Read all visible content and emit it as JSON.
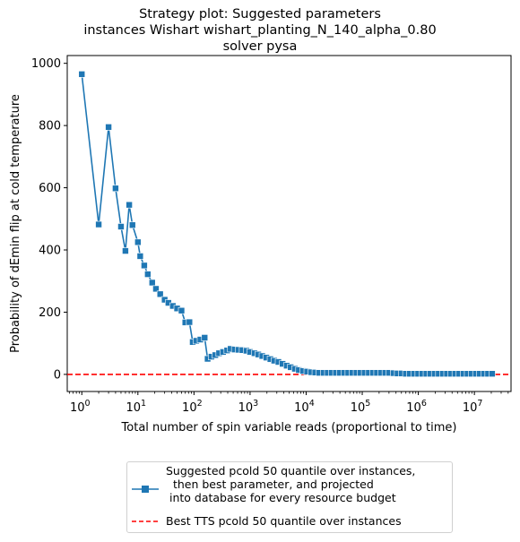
{
  "title_lines": [
    "Strategy plot: Suggested parameters",
    "instances Wishart wishart_planting_N_140_alpha_0.80",
    "solver pysa"
  ],
  "chart_data": {
    "type": "line",
    "title": "Strategy plot: Suggested parameters\ninstances Wishart wishart_planting_N_140_alpha_0.80\nsolver pysa",
    "xlabel": "Total number of spin variable reads (proportional to time)",
    "ylabel": "Probability of dEmin flip at cold temperature",
    "xscale": "log",
    "xlim": [
      0.55,
      45000000
    ],
    "ylim": [
      -55,
      1025
    ],
    "grid": false,
    "legend_position": "lower-center (below plot)",
    "xticks": [
      1,
      10,
      100,
      1000,
      10000,
      100000,
      1000000,
      10000000
    ],
    "xtick_labels": [
      "10^0",
      "10^1",
      "10^2",
      "10^3",
      "10^4",
      "10^5",
      "10^6",
      "10^7"
    ],
    "yticks": [
      0,
      200,
      400,
      600,
      800,
      1000
    ],
    "series": [
      {
        "name": "Suggested pcold 50 quantile over instances,\n  then best parameter, and projected\n into database for every resource budget",
        "color": "#1f77b4",
        "marker": "square",
        "x": [
          1,
          2,
          3,
          4,
          5,
          6,
          7,
          8,
          10,
          11,
          13,
          15,
          18,
          21,
          25,
          30,
          35,
          42,
          50,
          60,
          70,
          83,
          95,
          110,
          130,
          155,
          175,
          205,
          240,
          280,
          330,
          390,
          450,
          530,
          620,
          730,
          860,
          1000,
          1200,
          1400,
          1650,
          1950,
          2300,
          2700,
          3200,
          3800,
          4500,
          5300,
          6300,
          7400,
          8800,
          10400,
          12300,
          14500,
          17200,
          20400,
          24200,
          28600,
          33900,
          40100,
          47500,
          56200,
          66600,
          78800,
          93300,
          110000,
          131000,
          155000,
          183000,
          217000,
          257000,
          304000,
          360000,
          426000,
          505000,
          598000,
          708000,
          838000,
          992000,
          1170000,
          1390000,
          1650000,
          1950000,
          2310000,
          2730000,
          3240000,
          3830000,
          4540000,
          5370000,
          6360000,
          7530000,
          8920000,
          10600000,
          12500000,
          14800000,
          17500000,
          20700000
        ],
        "y": [
          965,
          482,
          795,
          598,
          475,
          397,
          545,
          480,
          425,
          380,
          350,
          322,
          295,
          275,
          258,
          240,
          230,
          220,
          212,
          205,
          167,
          168,
          104,
          108,
          112,
          118,
          50,
          57,
          62,
          68,
          72,
          77,
          82,
          80,
          79,
          78,
          76,
          72,
          68,
          64,
          59,
          54,
          49,
          44,
          40,
          34,
          28,
          23,
          18,
          14,
          11,
          9,
          7,
          6,
          5,
          5,
          5,
          5,
          5,
          5,
          5,
          5,
          5,
          5,
          5,
          5,
          5,
          5,
          5,
          5,
          5,
          5,
          4,
          3,
          3,
          2,
          2,
          2,
          2,
          2,
          2,
          2,
          2,
          2,
          2,
          2,
          2,
          2,
          2,
          2,
          2,
          2,
          2,
          2,
          2,
          2,
          2
        ]
      },
      {
        "name": "Best TTS pcold 50 quantile over instances",
        "color": "#ff0000",
        "style": "dashed",
        "y_constant": 0
      }
    ]
  }
}
